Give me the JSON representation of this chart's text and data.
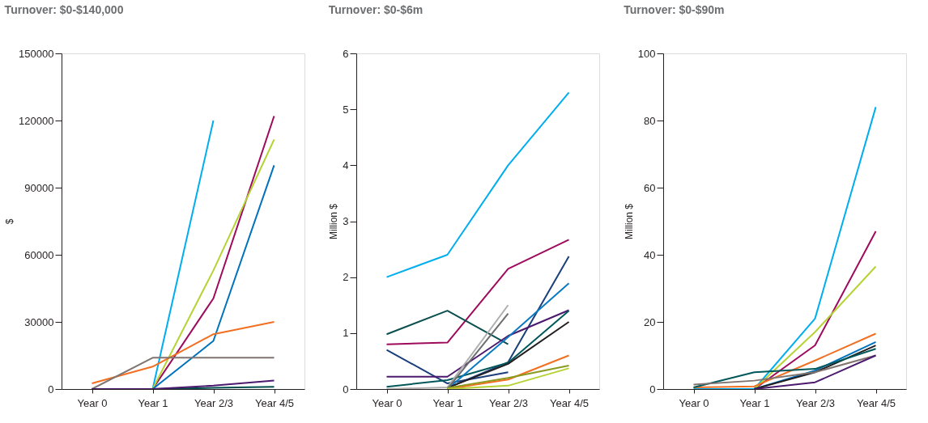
{
  "chart_data": [
    {
      "type": "line",
      "title": "Turnover: $0-$140,000",
      "ylabel": "$",
      "categories": [
        "Year 0",
        "Year 1",
        "Year 2/3",
        "Year 4/5"
      ],
      "ylim": [
        0,
        150000
      ],
      "yticks": [
        0,
        30000,
        60000,
        90000,
        120000,
        150000
      ],
      "grid": false,
      "legend": false,
      "series": [
        {
          "color": "#00aeef",
          "values": [
            null,
            0,
            120000,
            null
          ]
        },
        {
          "color": "#9e0a5c",
          "values": [
            null,
            0,
            40500,
            122000
          ]
        },
        {
          "color": "#b5d334",
          "values": [
            null,
            0,
            53000,
            111500
          ]
        },
        {
          "color": "#0072bc",
          "values": [
            null,
            0,
            21500,
            100000
          ]
        },
        {
          "color": "#f26f21",
          "values": [
            2500,
            10000,
            24500,
            30000
          ]
        },
        {
          "color": "#7f7470",
          "values": [
            0,
            14000,
            14000,
            14000
          ]
        },
        {
          "color": "#004d4d",
          "values": [
            0,
            0,
            500,
            1000
          ]
        },
        {
          "color": "#4b1a6e",
          "values": [
            0,
            0,
            1500,
            3800
          ]
        }
      ]
    },
    {
      "type": "line",
      "title": "Turnover: $0-$6m",
      "ylabel": "Million $",
      "categories": [
        "Year 0",
        "Year 1",
        "Year 2/3",
        "Year 4/5"
      ],
      "ylim": [
        0,
        6
      ],
      "yticks": [
        0,
        1,
        2,
        3,
        4,
        5,
        6
      ],
      "grid": false,
      "legend": false,
      "series": [
        {
          "color": "#00aeef",
          "values": [
            2.0,
            2.4,
            4.0,
            5.3
          ]
        },
        {
          "color": "#9e0a5c",
          "values": [
            0.8,
            0.83,
            2.15,
            2.67
          ]
        },
        {
          "color": "#0b4f4f",
          "values": [
            0.98,
            1.4,
            0.8,
            null
          ]
        },
        {
          "color": "#1b3f7a",
          "values": [
            0.7,
            0.1,
            0.3,
            null
          ]
        },
        {
          "color": "#1b3f7a",
          "values": [
            null,
            0.02,
            0.48,
            2.37
          ]
        },
        {
          "color": "#4b1a6e",
          "values": [
            0.22,
            0.22,
            0.95,
            1.41
          ]
        },
        {
          "color": "#00585a",
          "values": [
            0.04,
            0.16,
            0.47,
            1.4
          ]
        },
        {
          "color": "#0a7ac2",
          "values": [
            null,
            0,
            0.93,
            1.89
          ]
        },
        {
          "color": "#231f20",
          "values": [
            null,
            0.02,
            0.45,
            1.2
          ]
        },
        {
          "color": "#b0aeae",
          "values": [
            0,
            0.03,
            1.5,
            null
          ]
        },
        {
          "color": "#6d6e70",
          "values": [
            null,
            0,
            1.35,
            null
          ]
        },
        {
          "color": "#f26f21",
          "values": [
            null,
            0,
            0.17,
            0.6
          ]
        },
        {
          "color": "#8a9a1e",
          "values": [
            null,
            0.02,
            0.2,
            0.42
          ]
        },
        {
          "color": "#b5d334",
          "values": [
            null,
            0,
            0.06,
            0.37
          ]
        }
      ]
    },
    {
      "type": "line",
      "title": "Turnover: $0-$90m",
      "ylabel": "Million $",
      "categories": [
        "Year 0",
        "Year 1",
        "Year 2/3",
        "Year 4/5"
      ],
      "ylim": [
        0,
        100
      ],
      "yticks": [
        0,
        20,
        40,
        60,
        80,
        100
      ],
      "grid": false,
      "legend": false,
      "series": [
        {
          "color": "#00aeef",
          "values": [
            0,
            0,
            21,
            84
          ]
        },
        {
          "color": "#9e0a5c",
          "values": [
            null,
            0,
            13,
            47
          ]
        },
        {
          "color": "#b5d334",
          "values": [
            null,
            0,
            17,
            36.5
          ]
        },
        {
          "color": "#f26f21",
          "values": [
            0.5,
            0.8,
            8.5,
            16.5
          ]
        },
        {
          "color": "#0072bc",
          "values": [
            null,
            0,
            5.5,
            14
          ]
        },
        {
          "color": "#231f20",
          "values": [
            null,
            0,
            5,
            13
          ]
        },
        {
          "color": "#00585a",
          "values": [
            0.5,
            5,
            6,
            12
          ]
        },
        {
          "color": "#7f7470",
          "values": [
            1.3,
            2.5,
            5,
            10
          ]
        },
        {
          "color": "#4b1a6e",
          "values": [
            null,
            0,
            2,
            10
          ]
        }
      ]
    }
  ]
}
